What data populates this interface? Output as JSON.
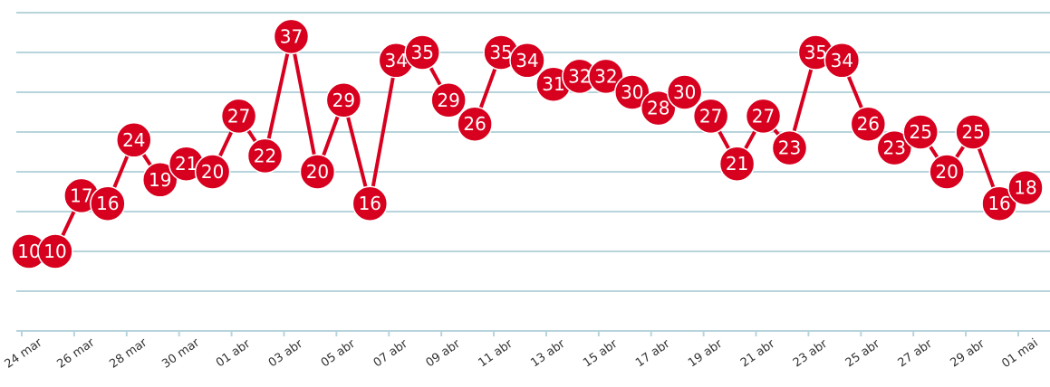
{
  "chart_data": {
    "type": "line",
    "categories": [
      "24 mar",
      null,
      "26 mar",
      null,
      "28 mar",
      null,
      "30 mar",
      null,
      "01 abr",
      null,
      "03 abr",
      null,
      "05 abr",
      null,
      "07 abr",
      null,
      "09 abr",
      null,
      "11 abr",
      null,
      "13 abr",
      null,
      "15 abr",
      null,
      "17 abr",
      null,
      "19 abr",
      null,
      "21 abr",
      null,
      "23 abr",
      null,
      "25 abr",
      null,
      "27 abr",
      null,
      "29 abr",
      null,
      "01 mai"
    ],
    "series": [
      {
        "color": "#d7001e",
        "values": [
          10,
          10,
          17,
          16,
          24,
          19,
          21,
          20,
          27,
          22,
          37,
          20,
          29,
          16,
          34,
          35,
          29,
          26,
          35,
          34,
          31,
          32,
          32,
          30,
          28,
          30,
          27,
          21,
          27,
          23,
          35,
          34,
          26,
          23,
          25,
          20,
          25,
          16,
          18
        ]
      }
    ],
    "ylim": [
      0,
      40
    ],
    "yticks": [
      0,
      5,
      10,
      15,
      20,
      25,
      30,
      35,
      40
    ],
    "grid": true
  }
}
